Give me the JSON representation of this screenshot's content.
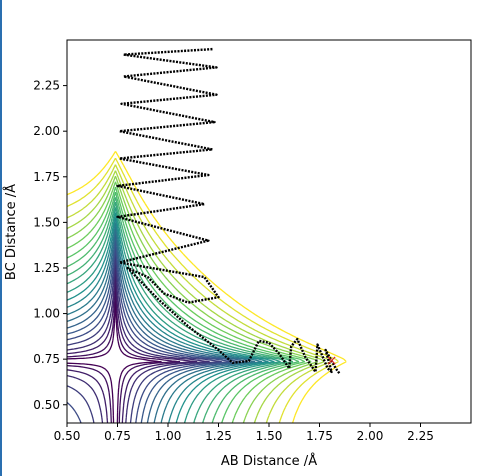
{
  "chart_data": {
    "type": "contour",
    "title": "",
    "xlabel": "AB Distance /Å",
    "ylabel": "BC Distance /Å",
    "xlim": [
      0.5,
      2.5
    ],
    "ylim": [
      0.4,
      2.5
    ],
    "xticks": [
      "0.50",
      "0.75",
      "1.00",
      "1.25",
      "1.50",
      "1.75",
      "2.00",
      "2.25"
    ],
    "yticks": [
      "0.50",
      "0.75",
      "1.00",
      "1.25",
      "1.50",
      "1.75",
      "2.00",
      "2.25"
    ],
    "colormap": [
      "#440154",
      "#3b528b",
      "#21918c",
      "#5ec962",
      "#fde725"
    ],
    "contours": {
      "minimum": [
        0.74,
        4.0
      ],
      "levels": [
        0.03,
        0.06,
        0.11,
        0.17,
        0.26,
        0.37,
        0.5,
        0.66,
        0.86,
        1.1,
        1.4,
        1.75,
        2.2,
        2.8,
        3.5,
        4.4,
        5.5,
        7,
        9,
        11.5,
        15,
        20,
        27
      ],
      "corner_sharpness": 0.14
    },
    "trajectory": {
      "color": "#000000",
      "points": [
        [
          1.22,
          2.45
        ],
        [
          0.78,
          2.42
        ],
        [
          1.24,
          2.35
        ],
        [
          0.78,
          2.3
        ],
        [
          1.24,
          2.2
        ],
        [
          0.77,
          2.15
        ],
        [
          1.23,
          2.05
        ],
        [
          0.76,
          2.0
        ],
        [
          1.22,
          1.9
        ],
        [
          0.76,
          1.85
        ],
        [
          1.2,
          1.76
        ],
        [
          0.75,
          1.7
        ],
        [
          1.18,
          1.6
        ],
        [
          0.75,
          1.53
        ],
        [
          1.2,
          1.4
        ],
        [
          0.76,
          1.28
        ],
        [
          1.18,
          1.2
        ],
        [
          1.25,
          1.09
        ],
        [
          1.1,
          1.06
        ],
        [
          0.98,
          1.11
        ],
        [
          0.9,
          1.2
        ],
        [
          0.8,
          1.25
        ],
        [
          0.95,
          1.08
        ],
        [
          1.1,
          0.93
        ],
        [
          1.25,
          0.8
        ],
        [
          1.32,
          0.73
        ],
        [
          1.4,
          0.74
        ],
        [
          1.45,
          0.85
        ],
        [
          1.5,
          0.84
        ],
        [
          1.55,
          0.78
        ],
        [
          1.6,
          0.7
        ],
        [
          1.61,
          0.82
        ],
        [
          1.64,
          0.86
        ],
        [
          1.68,
          0.76
        ],
        [
          1.73,
          0.68
        ],
        [
          1.74,
          0.83
        ],
        [
          1.79,
          0.7
        ],
        [
          1.81,
          0.68
        ],
        [
          1.78,
          0.8
        ],
        [
          1.83,
          0.7
        ],
        [
          1.85,
          0.67
        ]
      ]
    },
    "end_marker": {
      "label": "×",
      "color": "#d62728",
      "x": 1.81,
      "y": 0.74
    }
  }
}
